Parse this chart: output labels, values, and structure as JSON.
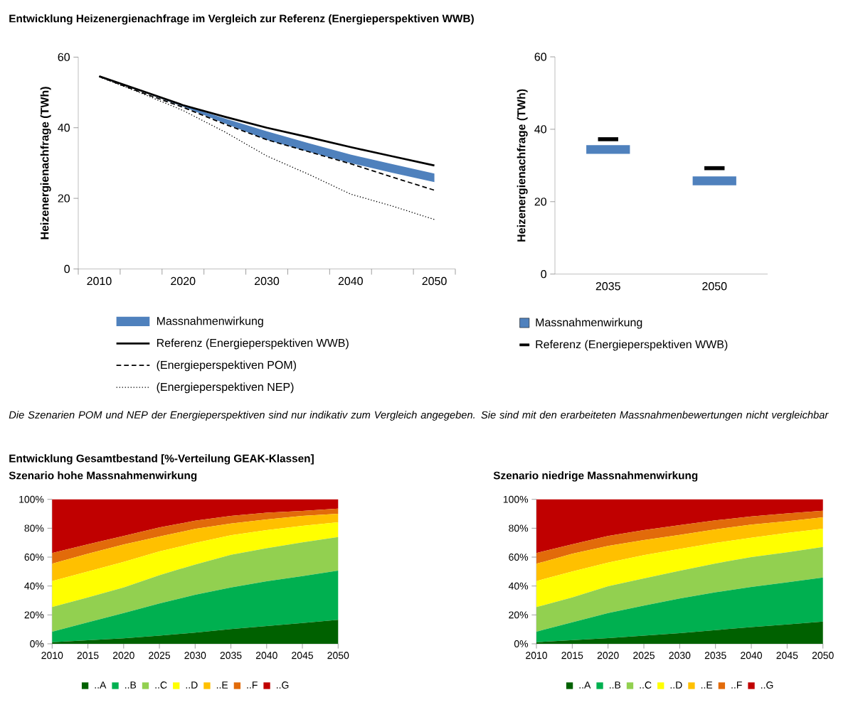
{
  "chart_data": [
    {
      "type": "line",
      "title": "Entwicklung Heizenergienachfrage im Vergleich zur Referenz (Energieperspektiven WWB)",
      "ylabel": "Heizenergienachfrage (TWh)",
      "annotations": [
        "Die Szenarien POM und NEP der Energieperspektiven sind nur indikativ zum Vergleich angegeben. Sie sind mit den erarbeiteten Massnahmenbewertungen nicht vergleichbar"
      ],
      "x": [
        2010,
        2015,
        2020,
        2025,
        2030,
        2035,
        2040,
        2045,
        2050
      ],
      "xlim": [
        2007.5,
        2052.5
      ],
      "xticks": [
        {
          "value": 2007.5,
          "label": null
        },
        2010,
        {
          "value": 2012.5,
          "label": null
        },
        {
          "value": 2017.5,
          "label": null
        },
        2020,
        {
          "value": 2022.5,
          "label": null
        },
        {
          "value": 2027.5,
          "label": null
        },
        2030,
        {
          "value": 2032.5,
          "label": null
        },
        {
          "value": 2037.5,
          "label": null
        },
        2040,
        {
          "value": 2042.5,
          "label": null
        },
        {
          "value": 2047.5,
          "label": null
        },
        2050,
        {
          "value": 2052.5,
          "label": null
        }
      ],
      "ylim": [
        0,
        60
      ],
      "yticks": [
        0,
        20,
        40,
        60
      ],
      "legend": "bottom",
      "series": [
        {
          "name": "Massnahmenwirkung",
          "color": "#4f81bd",
          "values": [
            null,
            null,
            null,
            null,
            null,
            null,
            null,
            null,
            null
          ],
          "lower": [
            54.4,
            50.3,
            46.0,
            41.2,
            36.6,
            33.2,
            30.0,
            27.2,
            24.6
          ],
          "upper": [
            54.6,
            50.5,
            46.4,
            42.6,
            39.0,
            35.6,
            32.4,
            29.7,
            27.0
          ]
        },
        {
          "name": "Referenz (Energieperspektiven WWB)",
          "color": "#000000",
          "line_style": "solid",
          "values": [
            54.6,
            50.5,
            46.4,
            43.1,
            40.0,
            37.3,
            34.5,
            31.9,
            29.3
          ]
        },
        {
          "name": "(Energieperspektiven POM)",
          "color": "#000000",
          "line_style": "dashed",
          "values": [
            54.5,
            50.0,
            45.8,
            41.0,
            36.6,
            33.2,
            29.8,
            26.0,
            22.3
          ]
        },
        {
          "name": "(Energieperspektiven NEP)",
          "color": "#000000",
          "line_style": "dotted",
          "values": [
            54.4,
            49.8,
            44.9,
            38.8,
            32.0,
            26.8,
            21.2,
            17.8,
            14.0
          ]
        }
      ]
    },
    {
      "type": "bar",
      "ylabel": "Heizenergienachfrage (TWh)",
      "categories": [
        "2035",
        "2050"
      ],
      "ylim": [
        0,
        60
      ],
      "yticks": [
        0,
        20,
        40,
        60
      ],
      "legend": "bottom",
      "series": [
        {
          "name": "Massnahmenwirkung",
          "color": "#4f81bd",
          "base": [
            33.2,
            24.5
          ],
          "values": [
            2.4,
            2.5
          ]
        },
        {
          "name": "Referenz (Energieperspektiven WWB)",
          "color": "#000000",
          "base": [
            36.7,
            28.7
          ],
          "values": [
            1.1,
            1.1
          ]
        }
      ]
    },
    {
      "type": "area",
      "stacked": true,
      "title": "Entwicklung Gesamtbestand [%-Verteilung GEAK-Klassen]",
      "subtitle": "Szenario hohe Massnahmenwirkung",
      "x": [
        2010,
        2015,
        2020,
        2025,
        2030,
        2035,
        2040,
        2045,
        2050
      ],
      "xlim": [
        2010,
        2050
      ],
      "xticks": [
        2010,
        2015,
        2020,
        2025,
        2030,
        2035,
        2040,
        2045,
        2050
      ],
      "ylim": [
        0,
        100
      ],
      "yticks": [
        {
          "value": 0,
          "label": "0%"
        },
        {
          "value": 20,
          "label": "20%"
        },
        {
          "value": 40,
          "label": "40%"
        },
        {
          "value": 60,
          "label": "60%"
        },
        {
          "value": 80,
          "label": "80%"
        },
        {
          "value": 100,
          "label": "100%"
        }
      ],
      "legend": "bottom",
      "series": [
        {
          "name": "..A",
          "color": "#006100",
          "values": [
            1.1,
            2.5,
            3.8,
            5.7,
            7.7,
            10.2,
            12.3,
            14.4,
            16.6
          ]
        },
        {
          "name": "..B",
          "color": "#00b050",
          "values": [
            7.3,
            12.4,
            17.5,
            22.2,
            26.2,
            28.8,
            31.0,
            32.5,
            34.1
          ]
        },
        {
          "name": "..C",
          "color": "#92d050",
          "values": [
            17.0,
            17.2,
            17.7,
            19.6,
            21.0,
            22.6,
            22.8,
            23.3,
            23.2
          ]
        },
        {
          "name": "..D",
          "color": "#ffff00",
          "values": [
            18.0,
            17.9,
            17.7,
            16.4,
            14.9,
            13.5,
            12.6,
            11.4,
            10.2
          ]
        },
        {
          "name": "..E",
          "color": "#ffc000",
          "values": [
            12.0,
            12.3,
            12.0,
            10.4,
            9.7,
            8.2,
            7.4,
            6.9,
            5.9
          ]
        },
        {
          "name": "..F",
          "color": "#e26b0a",
          "values": [
            7.4,
            6.6,
            5.9,
            6.2,
            5.7,
            5.2,
            4.6,
            3.5,
            3.6
          ]
        },
        {
          "name": "..G",
          "color": "#c00000",
          "values": [
            37.2,
            31.1,
            25.4,
            19.5,
            14.8,
            11.5,
            9.3,
            8.0,
            6.4
          ]
        }
      ]
    },
    {
      "type": "area",
      "stacked": true,
      "title": "Szenario niedrige Massnahmenwirkung",
      "x": [
        2010,
        2015,
        2020,
        2025,
        2030,
        2035,
        2040,
        2045,
        2050
      ],
      "xlim": [
        2010,
        2050
      ],
      "xticks": [
        2010,
        2015,
        2020,
        2025,
        2030,
        2035,
        2040,
        2045,
        2050
      ],
      "ylim": [
        0,
        100
      ],
      "yticks": [
        {
          "value": 0,
          "label": "0%"
        },
        {
          "value": 20,
          "label": "20%"
        },
        {
          "value": 40,
          "label": "40%"
        },
        {
          "value": 60,
          "label": "60%"
        },
        {
          "value": 80,
          "label": "80%"
        },
        {
          "value": 100,
          "label": "100%"
        }
      ],
      "legend": "bottom",
      "series": [
        {
          "name": "..A",
          "color": "#006100",
          "values": [
            1.1,
            2.5,
            3.9,
            5.6,
            7.4,
            9.5,
            11.5,
            13.4,
            15.4
          ]
        },
        {
          "name": "..B",
          "color": "#00b050",
          "values": [
            7.3,
            12.4,
            17.4,
            20.8,
            23.9,
            26.1,
            27.8,
            29.1,
            30.5
          ]
        },
        {
          "name": "..C",
          "color": "#92d050",
          "values": [
            17.0,
            17.2,
            18.5,
            18.8,
            19.2,
            20.0,
            20.7,
            20.8,
            21.1
          ]
        },
        {
          "name": "..D",
          "color": "#ffff00",
          "values": [
            18.0,
            17.9,
            16.4,
            16.1,
            15.2,
            14.2,
            13.4,
            13.4,
            12.7
          ]
        },
        {
          "name": "..E",
          "color": "#ffc000",
          "values": [
            12.0,
            12.3,
            11.5,
            10.5,
            9.7,
            9.4,
            9.1,
            8.2,
            7.8
          ]
        },
        {
          "name": "..F",
          "color": "#e26b0a",
          "values": [
            7.4,
            6.6,
            6.9,
            6.9,
            6.7,
            6.2,
            5.7,
            5.3,
            4.6
          ]
        },
        {
          "name": "..G",
          "color": "#c00000",
          "values": [
            37.2,
            31.1,
            25.4,
            21.3,
            17.9,
            14.6,
            11.8,
            9.8,
            7.9
          ]
        }
      ]
    }
  ]
}
